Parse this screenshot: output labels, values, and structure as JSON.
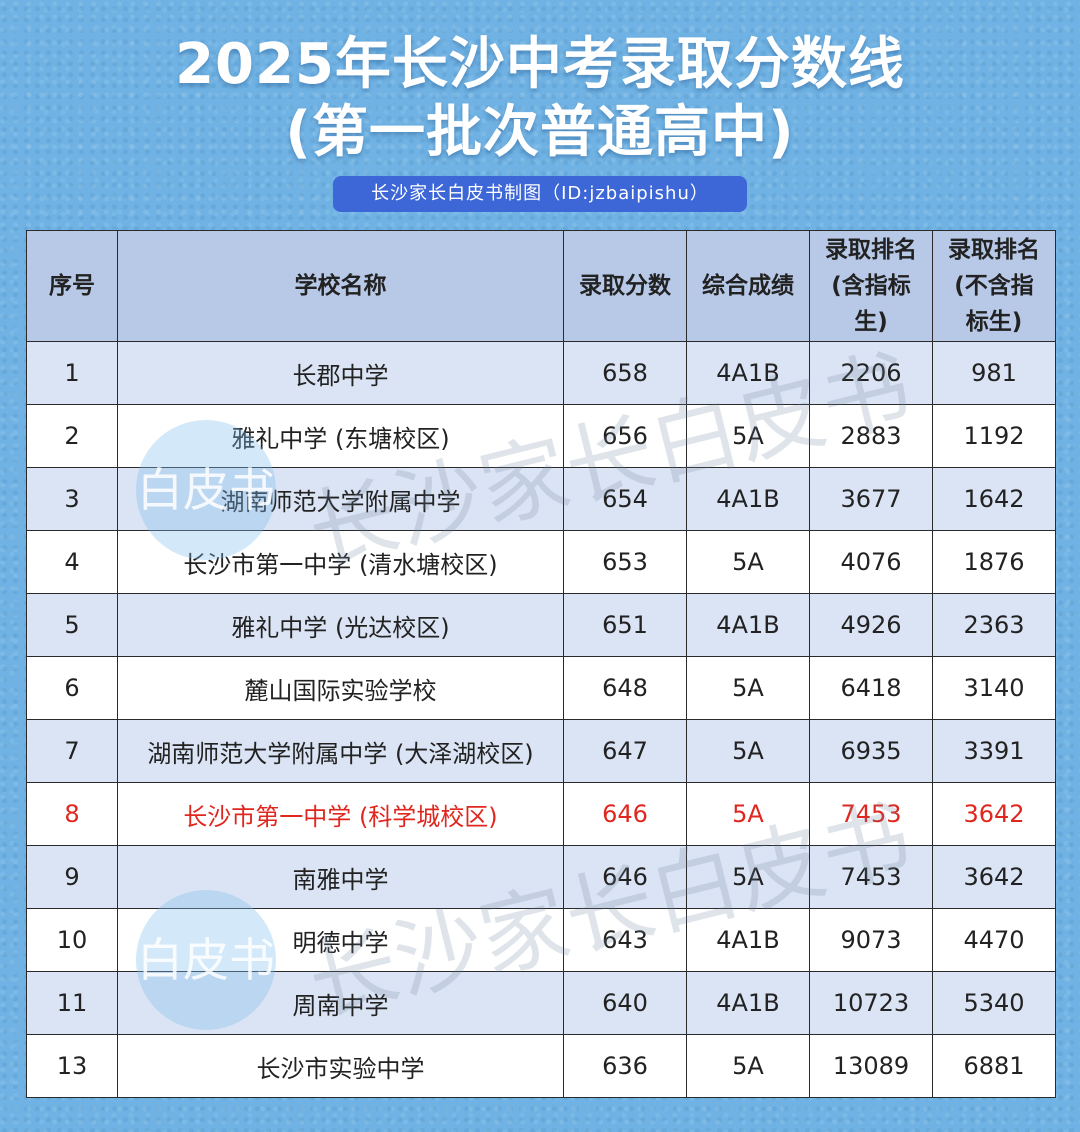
{
  "header": {
    "title_line1": "2025年长沙中考录取分数线",
    "title_line2": "(第一批次普通高中)",
    "subtitle": "长沙家长白皮书制图（ID:jzbaipishu）"
  },
  "table": {
    "columns": [
      "序号",
      "学校名称",
      "录取分数",
      "综合成绩",
      "录取排名\n(含指标\n生)",
      "录取排名\n(不含指\n标生)"
    ],
    "rows": [
      [
        "1",
        "长郡中学",
        "658",
        "4A1B",
        "2206",
        "981"
      ],
      [
        "2",
        "雅礼中学 (东塘校区)",
        "656",
        "5A",
        "2883",
        "1192"
      ],
      [
        "3",
        "湖南师范大学附属中学",
        "654",
        "4A1B",
        "3677",
        "1642"
      ],
      [
        "4",
        "长沙市第一中学 (清水塘校区)",
        "653",
        "5A",
        "4076",
        "1876"
      ],
      [
        "5",
        "雅礼中学 (光达校区)",
        "651",
        "4A1B",
        "4926",
        "2363"
      ],
      [
        "6",
        "麓山国际实验学校",
        "648",
        "5A",
        "6418",
        "3140"
      ],
      [
        "7",
        "湖南师范大学附属中学 (大泽湖校区)",
        "647",
        "5A",
        "6935",
        "3391"
      ],
      [
        "8",
        "长沙市第一中学 (科学城校区)",
        "646",
        "5A",
        "7453",
        "3642"
      ],
      [
        "9",
        "南雅中学",
        "646",
        "5A",
        "7453",
        "3642"
      ],
      [
        "10",
        "明德中学",
        "643",
        "4A1B",
        "9073",
        "4470"
      ],
      [
        "11",
        "周南中学",
        "640",
        "4A1B",
        "10723",
        "5340"
      ],
      [
        "13",
        "长沙市实验中学",
        "636",
        "5A",
        "13089",
        "6881"
      ]
    ],
    "highlighted_row_index": 7,
    "highlight_color": "#e0271f"
  },
  "watermark": {
    "text": "长沙家长白皮书",
    "logo_text": "白皮书"
  },
  "colors": {
    "background": "#6fb2e3",
    "header_row": "#b8c9e8",
    "odd_row": "#dbe4f4",
    "subtitle_bg": "#3d66d6"
  }
}
